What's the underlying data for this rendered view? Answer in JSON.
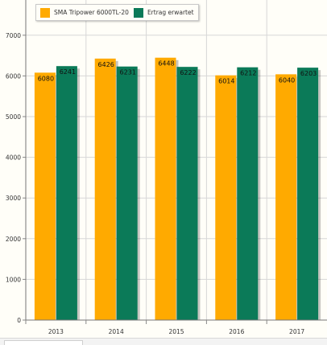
{
  "chart_data": {
    "type": "bar",
    "categories": [
      "2013",
      "2014",
      "2015",
      "2016",
      "2017"
    ],
    "series": [
      {
        "name": "SMA Tripower 6000TL-20",
        "values": [
          6080,
          6426,
          6448,
          6014,
          6040
        ],
        "color": "#FFAA00"
      },
      {
        "name": "Ertrag erwartet",
        "values": [
          6241,
          6231,
          6222,
          6212,
          6203
        ],
        "color": "#0B7A58"
      }
    ],
    "yticks": [
      "0",
      "1000",
      "2000",
      "3000",
      "4000",
      "5000",
      "6000",
      "7000"
    ],
    "ylim": [
      0,
      7000
    ],
    "grid": true,
    "legend": "top-left"
  }
}
